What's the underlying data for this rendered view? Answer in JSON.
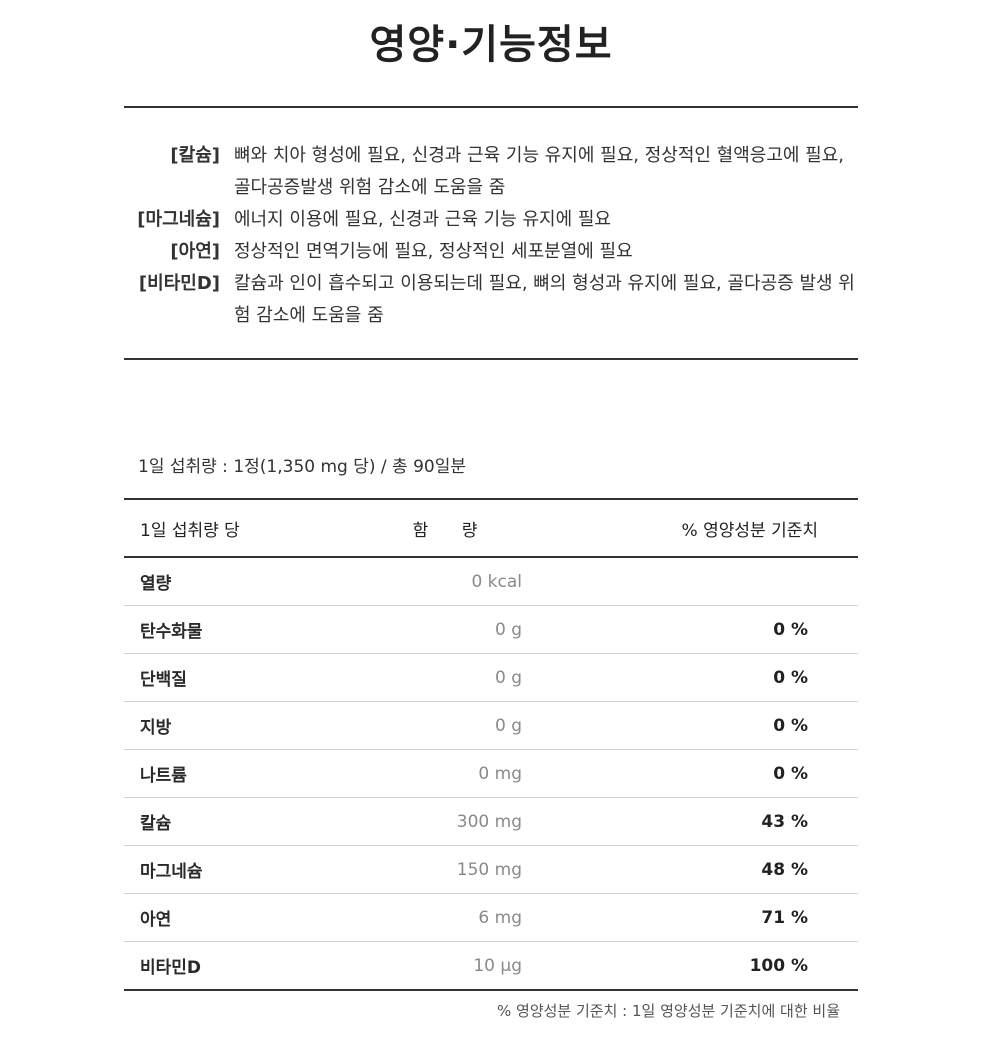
{
  "title": "영양·기능정보",
  "functions": [
    {
      "label": "[칼슘]",
      "text": "뼈와 치아 형성에 필요, 신경과 근육 기능 유지에 필요, 정상적인 혈액응고에 필요, 골다공증발생 위험 감소에 도움을 줌"
    },
    {
      "label": "[마그네슘]",
      "text": "에너지 이용에 필요, 신경과 근육 기능 유지에 필요"
    },
    {
      "label": "[아연]",
      "text": "정상적인 면역기능에 필요, 정상적인 세포분열에 필요"
    },
    {
      "label": "[비타민D]",
      "text": "칼슘과 인이 흡수되고 이용되는데 필요, 뼈의 형성과 유지에 필요, 골다공증 발생 위험 감소에 도움을 줌"
    }
  ],
  "serving": "1일 섭취량 : 1정(1,350 mg 당) / 총 90일분",
  "table": {
    "headers": {
      "name": "1일 섭취량 당",
      "amount": "함 량",
      "dv": "% 영양성분 기준치"
    },
    "rows": [
      {
        "name": "열량",
        "amount": "0 kcal",
        "dv": ""
      },
      {
        "name": "탄수화물",
        "amount": "0 g",
        "dv": "0 %"
      },
      {
        "name": "단백질",
        "amount": "0 g",
        "dv": "0 %"
      },
      {
        "name": "지방",
        "amount": "0 g",
        "dv": "0 %"
      },
      {
        "name": "나트륨",
        "amount": "0 mg",
        "dv": "0 %"
      },
      {
        "name": "칼슘",
        "amount": "300 mg",
        "dv": "43 %"
      },
      {
        "name": "마그네슘",
        "amount": "150 mg",
        "dv": "48 %"
      },
      {
        "name": "아연",
        "amount": "6 mg",
        "dv": "71 %"
      },
      {
        "name": "비타민D",
        "amount": "10 μg",
        "dv": "100 %"
      }
    ]
  },
  "note": "% 영양성분 기준치 : 1일 영양성분 기준치에 대한 비율"
}
